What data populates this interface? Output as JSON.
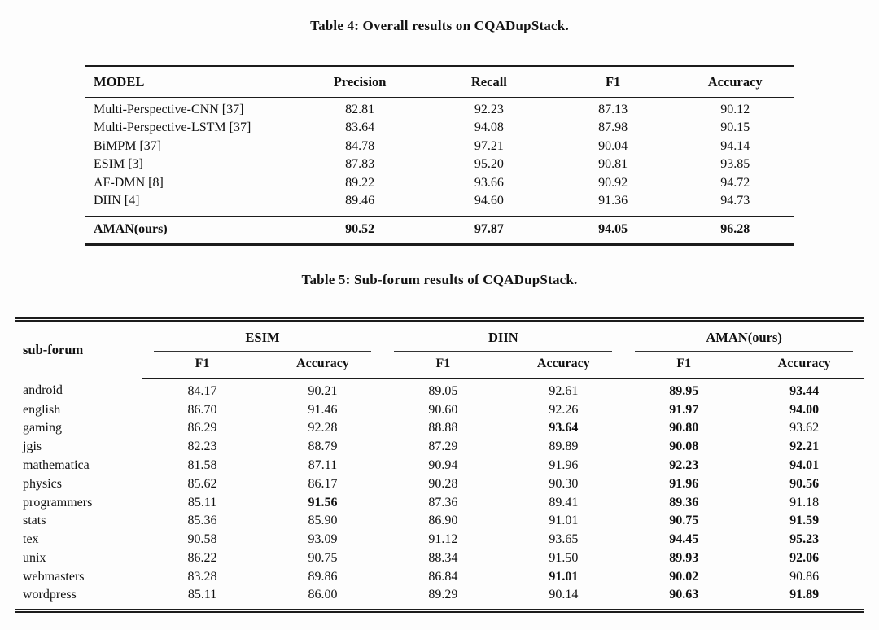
{
  "table4": {
    "title": "Table 4: Overall results on CQADupStack.",
    "columns": [
      "MODEL",
      "Precision",
      "Recall",
      "F1",
      "Accuracy"
    ],
    "rows": [
      [
        "Multi-Perspective-CNN [37]",
        "82.81",
        "92.23",
        "87.13",
        "90.12"
      ],
      [
        "Multi-Perspective-LSTM [37]",
        "83.64",
        "94.08",
        "87.98",
        "90.15"
      ],
      [
        "BiMPM [37]",
        "84.78",
        "97.21",
        "90.04",
        "94.14"
      ],
      [
        "ESIM [3]",
        "87.83",
        "95.20",
        "90.81",
        "93.85"
      ],
      [
        "AF-DMN [8]",
        "89.22",
        "93.66",
        "90.92",
        "94.72"
      ],
      [
        "DIIN [4]",
        "89.46",
        "94.60",
        "91.36",
        "94.73"
      ]
    ],
    "highlight_row": [
      "AMAN(ours)",
      "90.52",
      "97.87",
      "94.05",
      "96.28"
    ]
  },
  "table5": {
    "title": "Table 5: Sub-forum results of CQADupStack.",
    "row_header": "sub-forum",
    "groups": [
      "ESIM",
      "DIIN",
      "AMAN(ours)"
    ],
    "subcolumns": [
      "F1",
      "Accuracy"
    ],
    "rows": [
      {
        "cells": [
          "android",
          "84.17",
          "90.21",
          "89.05",
          "92.61",
          "89.95",
          "93.44"
        ],
        "bold": [
          false,
          false,
          false,
          false,
          false,
          true,
          true
        ]
      },
      {
        "cells": [
          "english",
          "86.70",
          "91.46",
          "90.60",
          "92.26",
          "91.97",
          "94.00"
        ],
        "bold": [
          false,
          false,
          false,
          false,
          false,
          true,
          true
        ]
      },
      {
        "cells": [
          "gaming",
          "86.29",
          "92.28",
          "88.88",
          "93.64",
          "90.80",
          "93.62"
        ],
        "bold": [
          false,
          false,
          false,
          false,
          true,
          true,
          false
        ]
      },
      {
        "cells": [
          "jgis",
          "82.23",
          "88.79",
          "87.29",
          "89.89",
          "90.08",
          "92.21"
        ],
        "bold": [
          false,
          false,
          false,
          false,
          false,
          true,
          true
        ]
      },
      {
        "cells": [
          "mathematica",
          "81.58",
          "87.11",
          "90.94",
          "91.96",
          "92.23",
          "94.01"
        ],
        "bold": [
          false,
          false,
          false,
          false,
          false,
          true,
          true
        ]
      },
      {
        "cells": [
          "physics",
          "85.62",
          "86.17",
          "90.28",
          "90.30",
          "91.96",
          "90.56"
        ],
        "bold": [
          false,
          false,
          false,
          false,
          false,
          true,
          true
        ]
      },
      {
        "cells": [
          "programmers",
          "85.11",
          "91.56",
          "87.36",
          "89.41",
          "89.36",
          "91.18"
        ],
        "bold": [
          false,
          false,
          true,
          false,
          false,
          true,
          false
        ]
      },
      {
        "cells": [
          "stats",
          "85.36",
          "85.90",
          "86.90",
          "91.01",
          "90.75",
          "91.59"
        ],
        "bold": [
          false,
          false,
          false,
          false,
          false,
          true,
          true
        ]
      },
      {
        "cells": [
          "tex",
          "90.58",
          "93.09",
          "91.12",
          "93.65",
          "94.45",
          "95.23"
        ],
        "bold": [
          false,
          false,
          false,
          false,
          false,
          true,
          true
        ]
      },
      {
        "cells": [
          "unix",
          "86.22",
          "90.75",
          "88.34",
          "91.50",
          "89.93",
          "92.06"
        ],
        "bold": [
          false,
          false,
          false,
          false,
          false,
          true,
          true
        ]
      },
      {
        "cells": [
          "webmasters",
          "83.28",
          "89.86",
          "86.84",
          "91.01",
          "90.02",
          "90.86"
        ],
        "bold": [
          false,
          false,
          false,
          false,
          true,
          true,
          false
        ]
      },
      {
        "cells": [
          "wordpress",
          "85.11",
          "86.00",
          "89.29",
          "90.14",
          "90.63",
          "91.89"
        ],
        "bold": [
          false,
          false,
          false,
          false,
          false,
          true,
          true
        ]
      }
    ]
  }
}
